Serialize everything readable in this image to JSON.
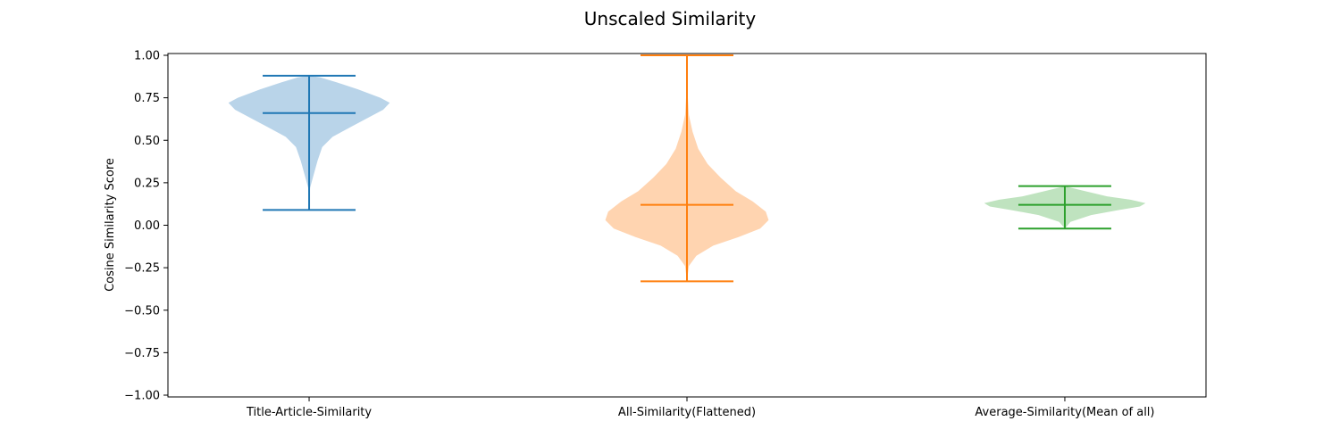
{
  "chart_data": {
    "type": "violin",
    "title": "Unscaled Similarity",
    "xlabel": "",
    "ylabel": "Cosine Similarity Score",
    "ylim": [
      -1.0,
      1.0
    ],
    "yticks": [
      "1.00",
      "0.75",
      "0.50",
      "0.25",
      "0.00",
      "−0.25",
      "−0.50",
      "−0.75",
      "−1.00"
    ],
    "ytick_values": [
      1.0,
      0.75,
      0.5,
      0.25,
      0.0,
      -0.25,
      -0.5,
      -0.75,
      -1.0
    ],
    "categories": [
      "Title-Article-Similarity",
      "All-Similarity(Flattened)",
      "Average-Similarity(Mean of all)"
    ],
    "grid": false,
    "series": [
      {
        "min": 0.09,
        "mean": 0.66,
        "max": 0.88,
        "color": "#1f77b4",
        "fill": "#b9d4e9",
        "profile": [
          [
            0.09,
            0.0
          ],
          [
            0.22,
            0.01
          ],
          [
            0.3,
            0.05
          ],
          [
            0.38,
            0.09
          ],
          [
            0.46,
            0.14
          ],
          [
            0.52,
            0.25
          ],
          [
            0.58,
            0.45
          ],
          [
            0.63,
            0.62
          ],
          [
            0.68,
            0.79
          ],
          [
            0.72,
            0.86
          ],
          [
            0.75,
            0.76
          ],
          [
            0.8,
            0.52
          ],
          [
            0.84,
            0.3
          ],
          [
            0.87,
            0.12
          ],
          [
            0.88,
            0.0
          ]
        ]
      },
      {
        "min": -0.33,
        "mean": 0.12,
        "max": 1.0,
        "color": "#ff7f0e",
        "fill": "#ffd4b0",
        "profile": [
          [
            -0.33,
            0.0
          ],
          [
            -0.24,
            0.02
          ],
          [
            -0.18,
            0.1
          ],
          [
            -0.12,
            0.28
          ],
          [
            -0.07,
            0.55
          ],
          [
            -0.02,
            0.78
          ],
          [
            0.03,
            0.87
          ],
          [
            0.08,
            0.84
          ],
          [
            0.14,
            0.7
          ],
          [
            0.2,
            0.52
          ],
          [
            0.28,
            0.36
          ],
          [
            0.36,
            0.22
          ],
          [
            0.45,
            0.12
          ],
          [
            0.55,
            0.06
          ],
          [
            0.65,
            0.02
          ],
          [
            0.75,
            0.01
          ],
          [
            0.9,
            0.004
          ],
          [
            1.0,
            0.0
          ]
        ]
      },
      {
        "min": -0.02,
        "mean": 0.12,
        "max": 0.23,
        "color": "#2ca02c",
        "fill": "#bfe3bf",
        "profile": [
          [
            -0.02,
            0.0
          ],
          [
            0.02,
            0.06
          ],
          [
            0.06,
            0.28
          ],
          [
            0.09,
            0.58
          ],
          [
            0.11,
            0.8
          ],
          [
            0.13,
            0.86
          ],
          [
            0.15,
            0.7
          ],
          [
            0.17,
            0.45
          ],
          [
            0.2,
            0.22
          ],
          [
            0.23,
            0.0
          ]
        ]
      }
    ]
  }
}
